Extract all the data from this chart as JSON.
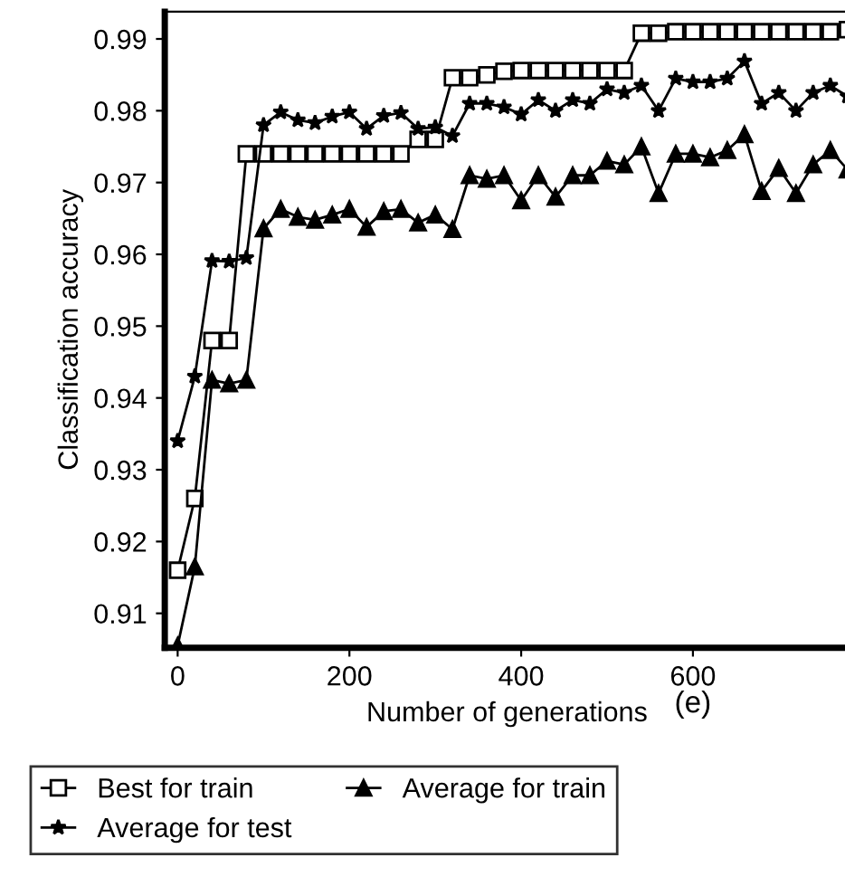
{
  "chart_data": {
    "type": "line",
    "xlabel": "Number of generations",
    "ylabel": "Classification accuracy",
    "annotations": [
      "(e)"
    ],
    "x": [
      0,
      20,
      40,
      60,
      80,
      100,
      120,
      140,
      160,
      180,
      200,
      220,
      240,
      260,
      280,
      300,
      320,
      340,
      360,
      380,
      400,
      420,
      440,
      460,
      480,
      500,
      520,
      540,
      560,
      580,
      600,
      620,
      640,
      660,
      680,
      700,
      720,
      740,
      760,
      780
    ],
    "series": [
      {
        "name": "Best for train",
        "color": "#000000",
        "marker": "square",
        "values": [
          0.916,
          0.926,
          0.948,
          0.948,
          0.974,
          0.974,
          0.974,
          0.974,
          0.974,
          0.974,
          0.974,
          0.974,
          0.974,
          0.974,
          0.976,
          0.976,
          0.9846,
          0.9846,
          0.985,
          0.9855,
          0.9856,
          0.9856,
          0.9856,
          0.9856,
          0.9856,
          0.9856,
          0.9856,
          0.9908,
          0.9908,
          0.991,
          0.991,
          0.991,
          0.991,
          0.991,
          0.991,
          0.991,
          0.991,
          0.991,
          0.991,
          0.9913
        ]
      },
      {
        "name": "Average for train",
        "color": "#000000",
        "marker": "triangle",
        "values": [
          0.9055,
          0.9165,
          0.9425,
          0.942,
          0.9425,
          0.9636,
          0.9663,
          0.9652,
          0.9648,
          0.9655,
          0.9663,
          0.9638,
          0.966,
          0.9663,
          0.9644,
          0.9655,
          0.9635,
          0.971,
          0.9705,
          0.971,
          0.9675,
          0.971,
          0.968,
          0.971,
          0.971,
          0.973,
          0.9725,
          0.975,
          0.9685,
          0.974,
          0.974,
          0.9735,
          0.9745,
          0.9767,
          0.9688,
          0.972,
          0.9685,
          0.9725,
          0.9745,
          0.9718
        ]
      },
      {
        "name": "Average for test",
        "color": "#000000",
        "marker": "star",
        "values": [
          0.934,
          0.943,
          0.9591,
          0.959,
          0.9595,
          0.978,
          0.9798,
          0.9787,
          0.9783,
          0.9792,
          0.9798,
          0.9775,
          0.9793,
          0.9797,
          0.9775,
          0.9777,
          0.9765,
          0.981,
          0.981,
          0.9805,
          0.9795,
          0.9815,
          0.98,
          0.9815,
          0.981,
          0.983,
          0.9825,
          0.9835,
          0.98,
          0.9845,
          0.984,
          0.984,
          0.9845,
          0.9869,
          0.981,
          0.9825,
          0.98,
          0.9825,
          0.9835,
          0.982
        ]
      }
    ],
    "xlim": [
      -15,
      782
    ],
    "ylim": [
      0.9052,
      0.9938
    ],
    "xticks": [
      0,
      200,
      400,
      600
    ],
    "yticks": [
      0.91,
      0.92,
      0.93,
      0.94,
      0.95,
      0.96,
      0.97,
      0.98,
      0.99
    ],
    "grid": false,
    "legend": "bottom",
    "line_style": "solid"
  }
}
